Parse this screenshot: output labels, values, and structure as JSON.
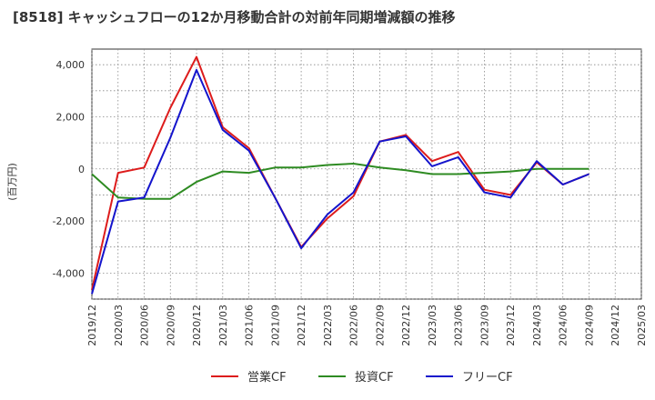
{
  "chart_data": {
    "type": "line",
    "title": "[8518]  キャッシュフローの12か月移動合計の対前年同期増減額の推移",
    "ylabel": "(百万円)",
    "xlabel": "",
    "ylim": [
      -5000,
      4600
    ],
    "yticks": [
      4000,
      2000,
      0,
      -2000,
      -4000
    ],
    "ytick_labels": [
      "4,000",
      "2,000",
      "0",
      "-2,000",
      "-4,000"
    ],
    "categories": [
      "2019/12",
      "2020/03",
      "2020/06",
      "2020/09",
      "2020/12",
      "2021/03",
      "2021/06",
      "2021/09",
      "2021/12",
      "2022/03",
      "2022/06",
      "2022/09",
      "2022/12",
      "2023/03",
      "2023/06",
      "2023/09",
      "2023/12",
      "2024/03",
      "2024/06",
      "2024/09",
      "2024/12",
      "2025/03"
    ],
    "grid": true,
    "legend_position": "bottom",
    "series": [
      {
        "name": "営業CF",
        "color": "#dd1c1c",
        "values": [
          -4650,
          -150,
          50,
          2350,
          4300,
          1600,
          800,
          -1100,
          -3000,
          -1900,
          -1050,
          1050,
          1300,
          300,
          650,
          -800,
          -1000,
          250,
          -600,
          -200,
          null,
          null
        ]
      },
      {
        "name": "投資CF",
        "color": "#2e8b22",
        "values": [
          -200,
          -1100,
          -1150,
          -1150,
          -500,
          -100,
          -150,
          50,
          50,
          150,
          200,
          50,
          -50,
          -200,
          -200,
          -150,
          -100,
          0,
          0,
          0,
          null,
          null
        ]
      },
      {
        "name": "フリーCF",
        "color": "#1414cc",
        "values": [
          -4800,
          -1250,
          -1100,
          1200,
          3800,
          1500,
          700,
          -1100,
          -3050,
          -1750,
          -900,
          1050,
          1250,
          100,
          450,
          -900,
          -1100,
          300,
          -600,
          -200,
          null,
          null
        ]
      }
    ]
  }
}
